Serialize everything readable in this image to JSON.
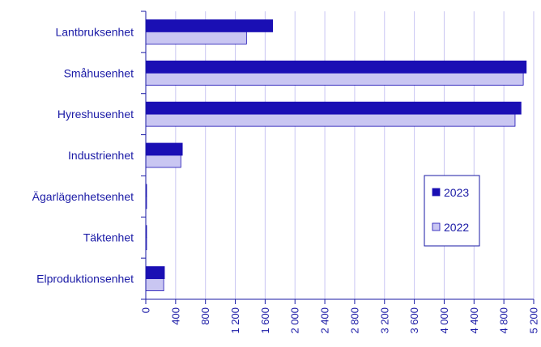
{
  "chart_data": {
    "type": "bar",
    "orientation": "horizontal",
    "categories": [
      "Lantbruksenhet",
      "Småhusenhet",
      "Hyreshusenhet",
      "Industrienhet",
      "Ägarlägenhetsenhet",
      "Täktenhet",
      "Elproduktionsenhet"
    ],
    "series": [
      {
        "name": "2023",
        "color": "#1a0fb4",
        "values": [
          1700,
          5100,
          5030,
          490,
          10,
          10,
          250
        ]
      },
      {
        "name": "2022",
        "color": "#c9c6f2",
        "values": [
          1350,
          5060,
          4950,
          470,
          10,
          10,
          240
        ]
      }
    ],
    "x_ticks": [
      "0",
      "400",
      "800",
      "1 200",
      "1 600",
      "2 000",
      "2 400",
      "2 800",
      "3 200",
      "3 600",
      "4 000",
      "4 400",
      "4 800",
      "5 200"
    ],
    "xlim": [
      0,
      5200
    ],
    "grid": "vertical",
    "legend_position": "right",
    "title": "",
    "xlabel": "",
    "ylabel": "",
    "colors": {
      "axis": "#1a1aa6",
      "grid": "#c9c6f2",
      "text": "#1a1aa6"
    }
  }
}
